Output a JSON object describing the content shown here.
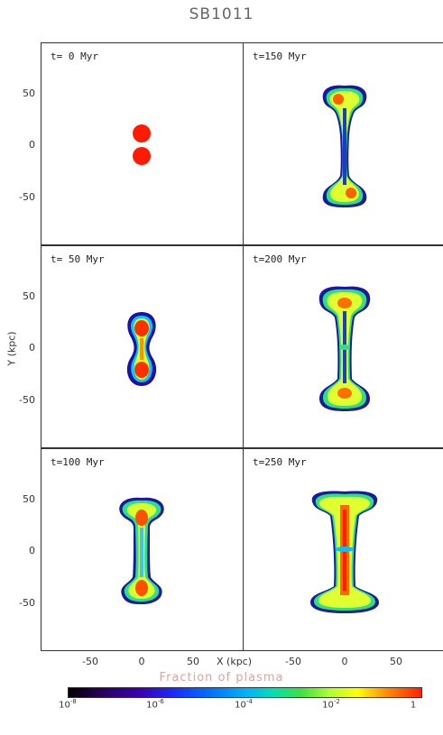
{
  "title": "SB1011",
  "panels": [
    {
      "label": "t=  0 Myr"
    },
    {
      "label": "t=150 Myr"
    },
    {
      "label": "t= 50 Myr"
    },
    {
      "label": "t=200 Myr"
    },
    {
      "label": "t=100 Myr"
    },
    {
      "label": "t=250 Myr"
    }
  ],
  "axes": {
    "xlabel": "X (kpc)",
    "ylabel": "Y (kpc)",
    "xticks": [
      "-50",
      "0",
      "50"
    ],
    "yticks": [
      "50",
      "0",
      "-50"
    ]
  },
  "colorbar": {
    "title": "Fraction of plasma",
    "ticks": [
      {
        "base": "10",
        "exp": "-8"
      },
      {
        "base": "10",
        "exp": "-6"
      },
      {
        "base": "10",
        "exp": "-4"
      },
      {
        "base": "10",
        "exp": "-2"
      },
      {
        "base": "1",
        "exp": ""
      }
    ],
    "colors": [
      "#000000",
      "#3b00b0",
      "#0070ff",
      "#00e0b0",
      "#b0ff30",
      "#ffff00",
      "#ff2000"
    ]
  }
}
